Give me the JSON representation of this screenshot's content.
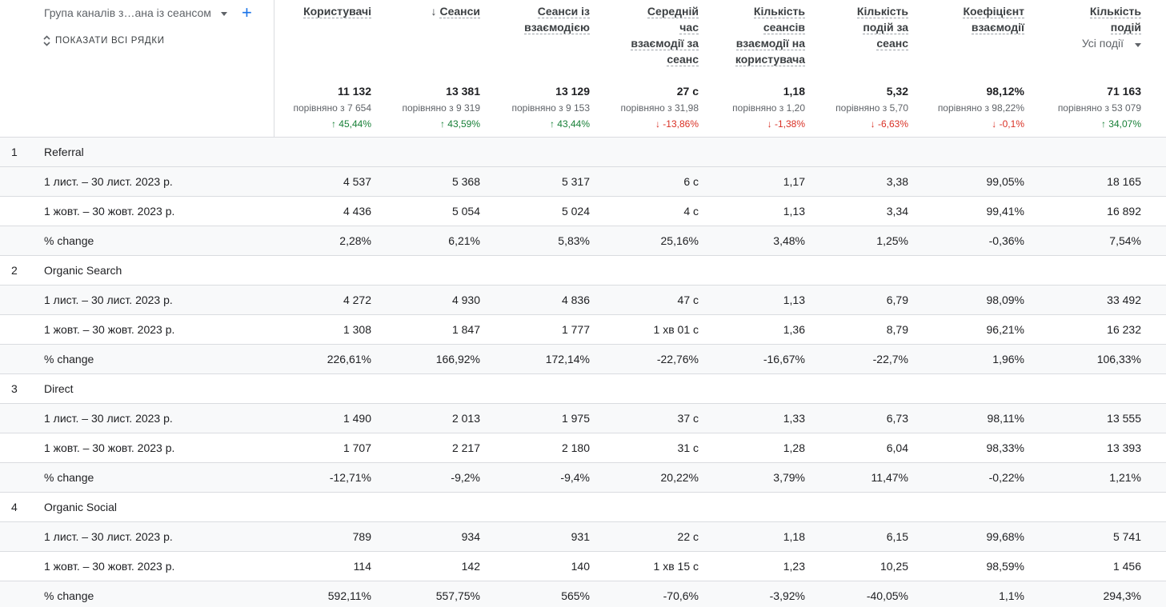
{
  "dimension": {
    "label": "Група каналів з…ана із сеансом",
    "show_all_rows": "ПОКАЗАТИ ВСІ РЯДКИ"
  },
  "metrics": [
    {
      "key": "users",
      "header": [
        "Користувачі"
      ],
      "sorted": false
    },
    {
      "key": "sessions",
      "header": [
        "Сеанси"
      ],
      "sorted": true
    },
    {
      "key": "engaged_sessions",
      "header": [
        "Сеанси із",
        "взаємодією"
      ],
      "sorted": false
    },
    {
      "key": "avg_engagement_time",
      "header": [
        "Середній",
        "час",
        "взаємодії за",
        "сеанс"
      ],
      "sorted": false
    },
    {
      "key": "engaged_sessions_per_user",
      "header": [
        "Кількість",
        "сеансів",
        "взаємодії на",
        "користувача"
      ],
      "sorted": false
    },
    {
      "key": "events_per_session",
      "header": [
        "Кількість",
        "подій за",
        "сеанс"
      ],
      "sorted": false
    },
    {
      "key": "engagement_rate",
      "header": [
        "Коефіцієнт",
        "взаємодії"
      ],
      "sorted": false
    },
    {
      "key": "event_count",
      "header": [
        "Кількість",
        "подій"
      ],
      "sorted": false
    }
  ],
  "event_selector": "Усі події",
  "totals": [
    {
      "value": "11 132",
      "compare": "порівняно з 7 654",
      "delta": "45,44%",
      "dir": "up"
    },
    {
      "value": "13 381",
      "compare": "порівняно з 9 319",
      "delta": "43,59%",
      "dir": "up"
    },
    {
      "value": "13 129",
      "compare": "порівняно з 9 153",
      "delta": "43,44%",
      "dir": "up"
    },
    {
      "value": "27 с",
      "compare": "порівняно з 31,98",
      "delta": "-13,86%",
      "dir": "down"
    },
    {
      "value": "1,18",
      "compare": "порівняно з 1,20",
      "delta": "-1,38%",
      "dir": "down"
    },
    {
      "value": "5,32",
      "compare": "порівняно з 5,70",
      "delta": "-6,63%",
      "dir": "down"
    },
    {
      "value": "98,12%",
      "compare": "порівняно з 98,22%",
      "delta": "-0,1%",
      "dir": "down"
    },
    {
      "value": "71 163",
      "compare": "порівняно з 53 079",
      "delta": "34,07%",
      "dir": "up"
    }
  ],
  "groups": [
    {
      "index": "1",
      "name": "Referral",
      "rows": [
        {
          "label": "1 лист. – 30 лист. 2023 р.",
          "values": [
            "4 537",
            "5 368",
            "5 317",
            "6 с",
            "1,17",
            "3,38",
            "99,05%",
            "18 165"
          ]
        },
        {
          "label": "1 жовт. – 30 жовт. 2023 р.",
          "values": [
            "4 436",
            "5 054",
            "5 024",
            "4 с",
            "1,13",
            "3,34",
            "99,41%",
            "16 892"
          ]
        },
        {
          "label": "% change",
          "values": [
            "2,28%",
            "6,21%",
            "5,83%",
            "25,16%",
            "3,48%",
            "1,25%",
            "-0,36%",
            "7,54%"
          ]
        }
      ]
    },
    {
      "index": "2",
      "name": "Organic Search",
      "rows": [
        {
          "label": "1 лист. – 30 лист. 2023 р.",
          "values": [
            "4 272",
            "4 930",
            "4 836",
            "47 с",
            "1,13",
            "6,79",
            "98,09%",
            "33 492"
          ]
        },
        {
          "label": "1 жовт. – 30 жовт. 2023 р.",
          "values": [
            "1 308",
            "1 847",
            "1 777",
            "1 хв 01 с",
            "1,36",
            "8,79",
            "96,21%",
            "16 232"
          ]
        },
        {
          "label": "% change",
          "values": [
            "226,61%",
            "166,92%",
            "172,14%",
            "-22,76%",
            "-16,67%",
            "-22,7%",
            "1,96%",
            "106,33%"
          ]
        }
      ]
    },
    {
      "index": "3",
      "name": "Direct",
      "rows": [
        {
          "label": "1 лист. – 30 лист. 2023 р.",
          "values": [
            "1 490",
            "2 013",
            "1 975",
            "37 с",
            "1,33",
            "6,73",
            "98,11%",
            "13 555"
          ]
        },
        {
          "label": "1 жовт. – 30 жовт. 2023 р.",
          "values": [
            "1 707",
            "2 217",
            "2 180",
            "31 с",
            "1,28",
            "6,04",
            "98,33%",
            "13 393"
          ]
        },
        {
          "label": "% change",
          "values": [
            "-12,71%",
            "-9,2%",
            "-9,4%",
            "20,22%",
            "3,79%",
            "11,47%",
            "-0,22%",
            "1,21%"
          ]
        }
      ]
    },
    {
      "index": "4",
      "name": "Organic Social",
      "rows": [
        {
          "label": "1 лист. – 30 лист. 2023 р.",
          "values": [
            "789",
            "934",
            "931",
            "22 с",
            "1,18",
            "6,15",
            "99,68%",
            "5 741"
          ]
        },
        {
          "label": "1 жовт. – 30 жовт. 2023 р.",
          "values": [
            "114",
            "142",
            "140",
            "1 хв 15 с",
            "1,23",
            "10,25",
            "98,59%",
            "1 456"
          ]
        },
        {
          "label": "% change",
          "values": [
            "592,11%",
            "557,75%",
            "565%",
            "-70,6%",
            "-3,92%",
            "-40,05%",
            "1,1%",
            "294,3%"
          ]
        }
      ]
    }
  ]
}
